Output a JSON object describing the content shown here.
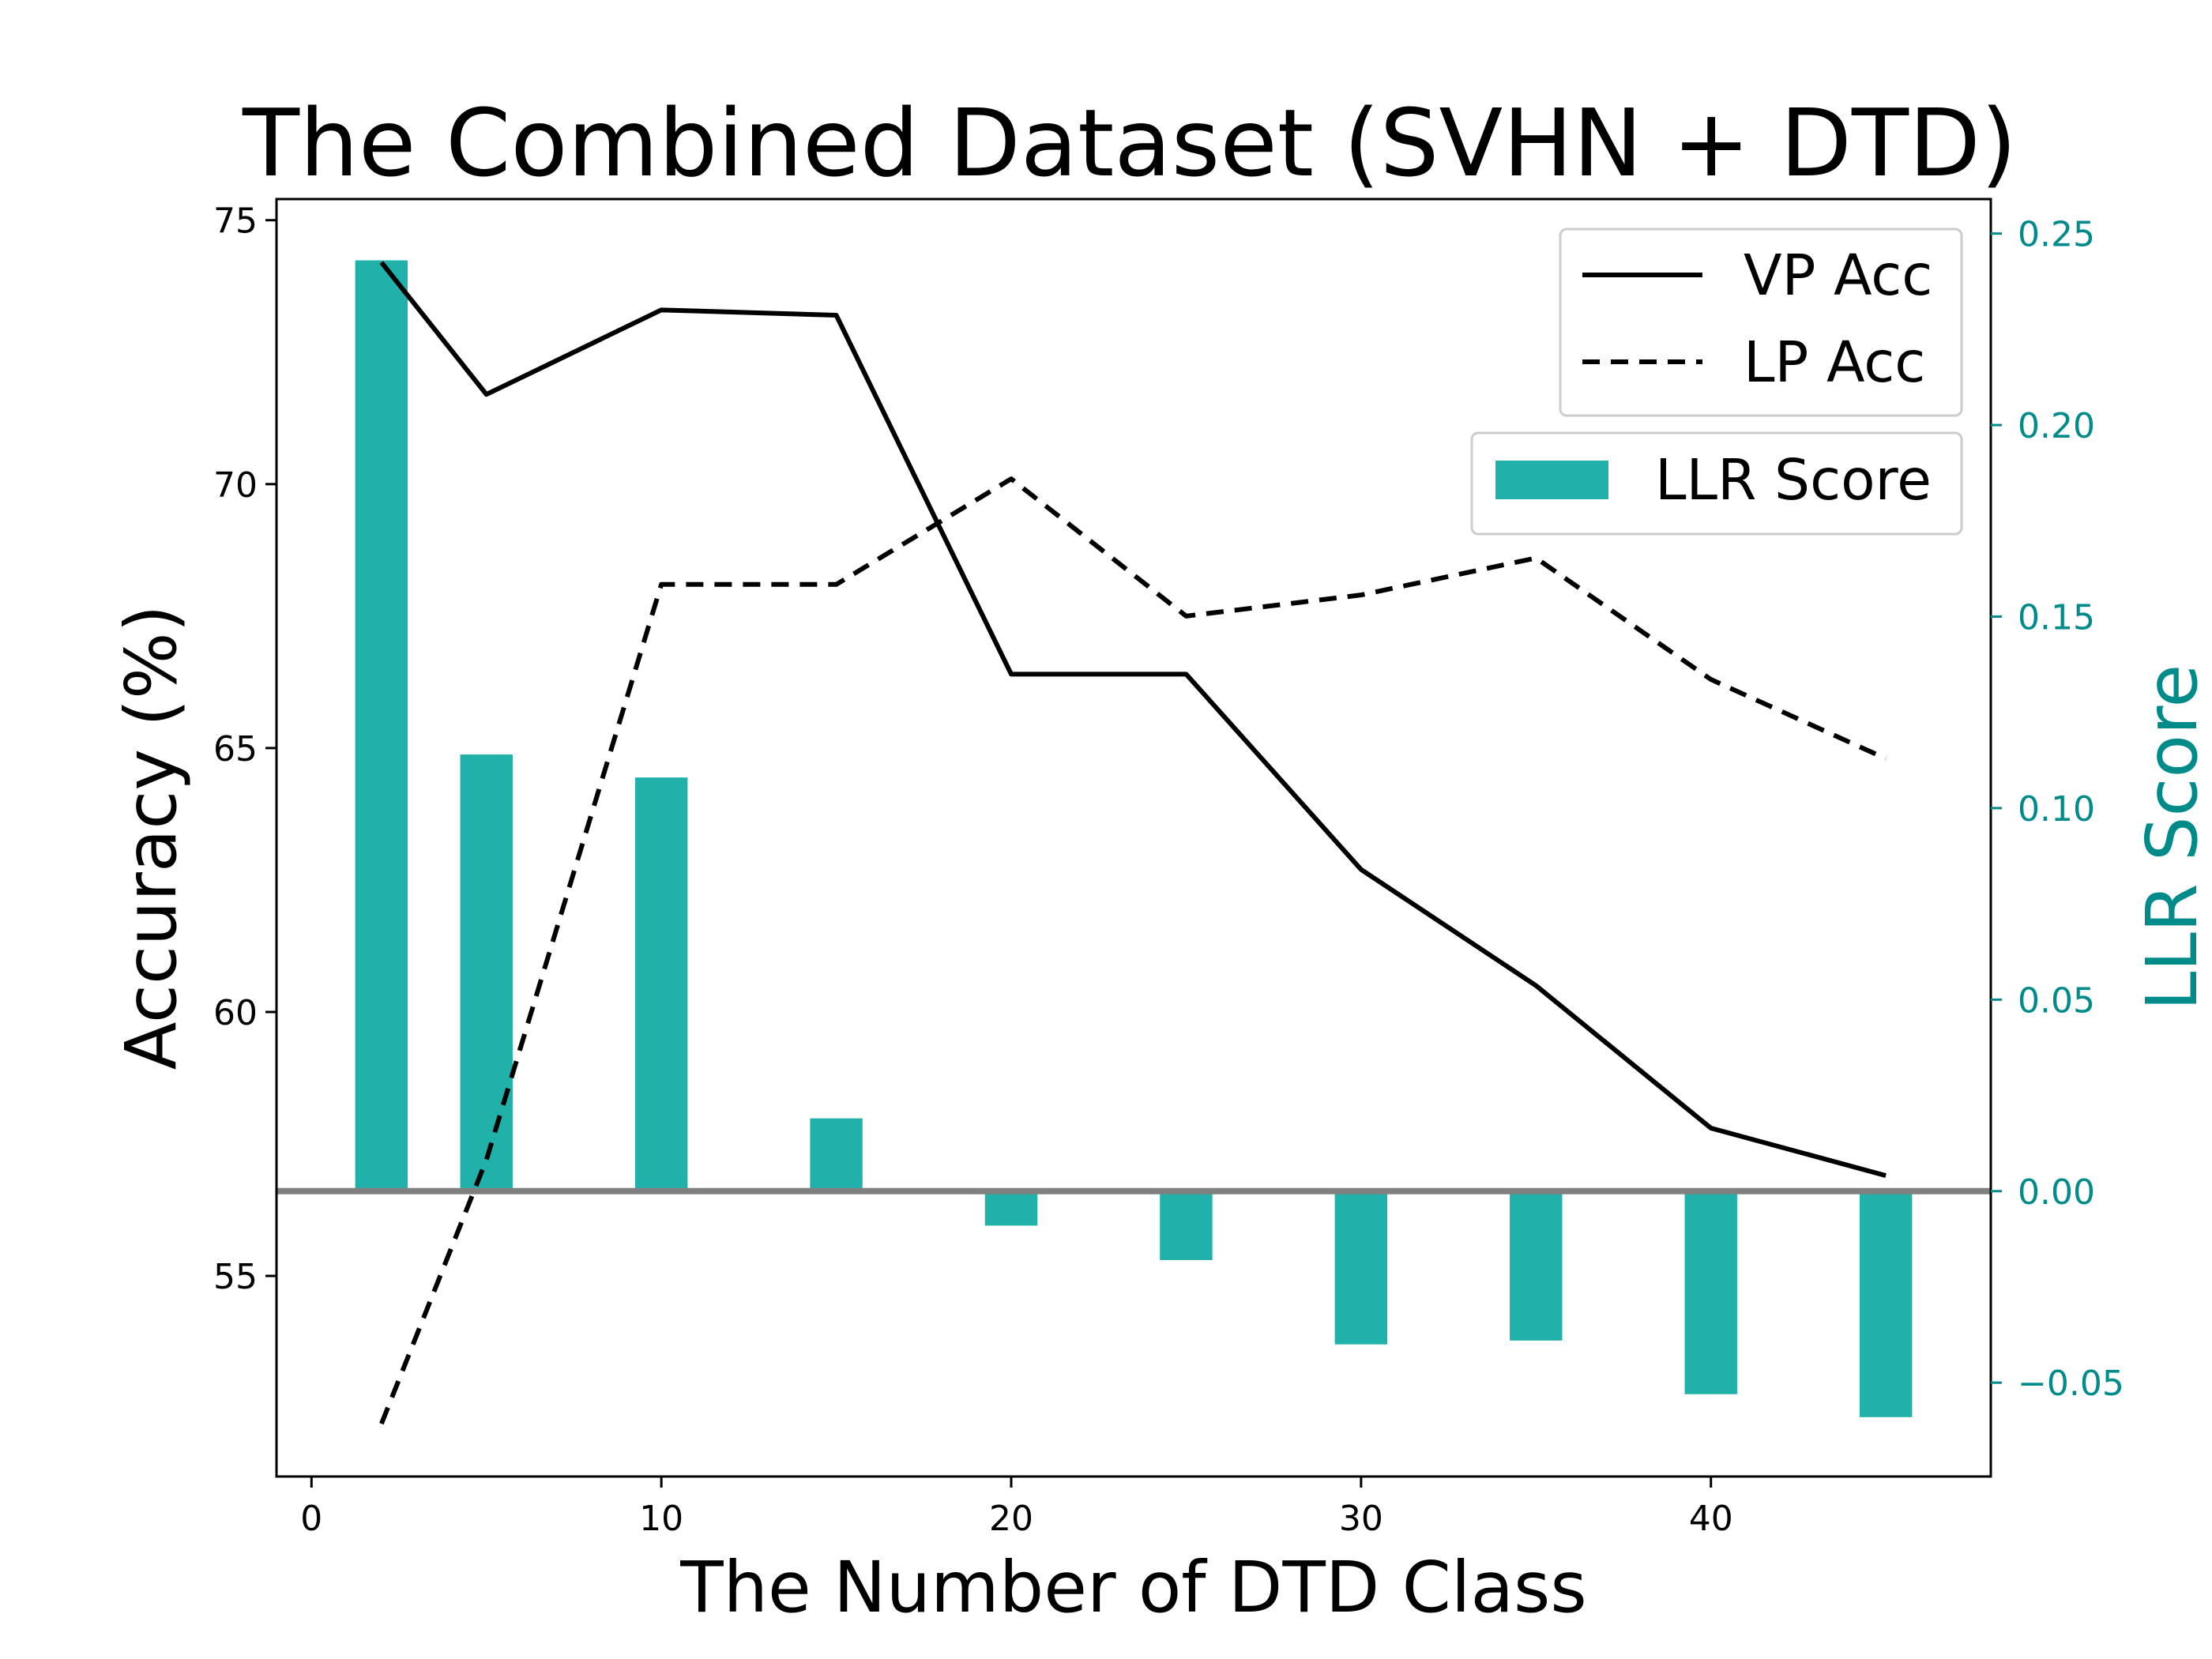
{
  "chart_data": {
    "type": "bar+line",
    "title": "The Combined Dataset (SVHN + DTD)",
    "xlabel": "The Number of DTD Class",
    "ylabel": "Accuracy (%)",
    "y2label": "LLR Score",
    "xlim": [
      -1,
      48
    ],
    "ylim": [
      51.2,
      75.4
    ],
    "y2lim": [
      -0.0745,
      0.259
    ],
    "xticks": [
      0,
      10,
      20,
      30,
      40
    ],
    "yticks": [
      55,
      60,
      65,
      70,
      75
    ],
    "y2ticks": [
      -0.05,
      0.0,
      0.05,
      0.1,
      0.15,
      0.2,
      0.25
    ],
    "y2tick_labels": [
      "−0.05",
      "0.00",
      "0.05",
      "0.10",
      "0.15",
      "0.20",
      "0.25"
    ],
    "x": [
      2,
      5,
      10,
      15,
      20,
      25,
      30,
      35,
      40,
      45
    ],
    "series": [
      {
        "name": "VP Acc",
        "axis": "left",
        "style": "solid",
        "values": [
          74.2,
          71.7,
          73.3,
          73.2,
          66.4,
          66.4,
          62.7,
          60.5,
          57.8,
          56.9
        ]
      },
      {
        "name": "LP Acc",
        "axis": "left",
        "style": "dashed",
        "values": [
          52.2,
          57.2,
          68.1,
          68.1,
          70.1,
          67.5,
          67.9,
          68.6,
          66.3,
          64.8
        ]
      },
      {
        "name": "LLR Score",
        "axis": "right",
        "style": "bar",
        "values": [
          0.243,
          0.114,
          0.108,
          0.019,
          -0.009,
          -0.018,
          -0.04,
          -0.039,
          -0.053,
          -0.059
        ]
      }
    ],
    "legend": {
      "position": "top-right",
      "entries": [
        "VP Acc",
        "LP Acc",
        "LLR Score"
      ]
    },
    "colors": {
      "bar": "#20b2aa",
      "right_axis": "#008b8b",
      "zero_line": "#808080",
      "lines": "#000000"
    }
  }
}
